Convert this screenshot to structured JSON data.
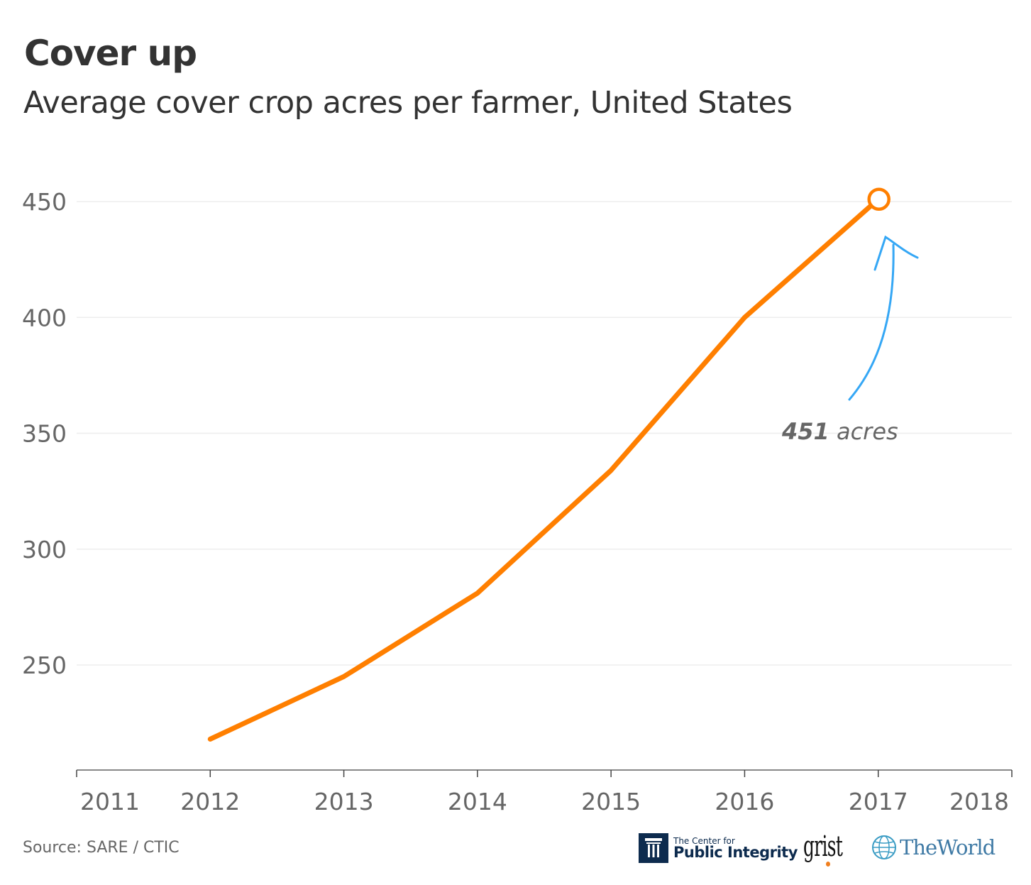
{
  "header": {
    "title": "Cover up",
    "subtitle": "Average cover crop acres per farmer, United States"
  },
  "chart_data": {
    "type": "line",
    "title": "Cover up",
    "subtitle": "Average cover crop acres per farmer, United States",
    "xlabel": "",
    "ylabel": "",
    "x": [
      2012,
      2013,
      2014,
      2015,
      2016,
      2017
    ],
    "series": [
      {
        "name": "Average cover crop acres per farmer",
        "color": "#ff7f00",
        "values": [
          218,
          245,
          281,
          334,
          400,
          451
        ]
      }
    ],
    "x_ticks": [
      "2011",
      "2012",
      "2013",
      "2014",
      "2015",
      "2016",
      "2017",
      "2018"
    ],
    "xlim": [
      2011,
      2018
    ],
    "y_ticks": [
      "450",
      "400",
      "350",
      "300",
      "250"
    ],
    "ylim": [
      205,
      460
    ],
    "grid": true,
    "legend": "none",
    "annotations": [
      {
        "x": 2017,
        "y": 451,
        "value_text": "451",
        "unit_text": " acres",
        "color": "#35a7f5",
        "marker": "open-circle"
      }
    ]
  },
  "footer": {
    "source": "Source: SARE / CTIC",
    "logos": {
      "cpi_line1": "The Center for",
      "cpi_line2": "Public Integrity",
      "grist": "grist",
      "the_world": "TheWorld"
    }
  },
  "colors": {
    "line": "#ff7f00",
    "arrow": "#35a7f5",
    "grid": "#eeeeee",
    "axis": "#888888",
    "text": "#333333",
    "muted": "#666666"
  }
}
